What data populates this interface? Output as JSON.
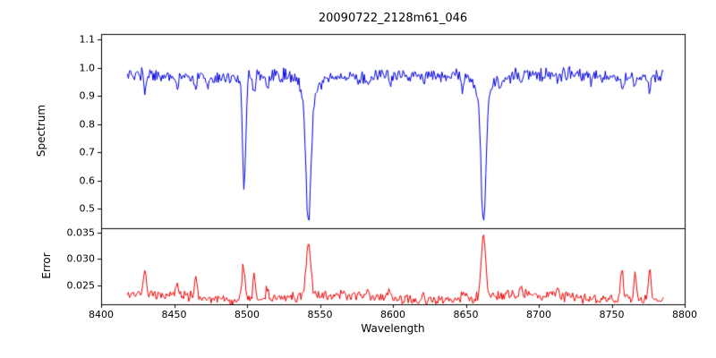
{
  "figure": {
    "title": "20090722_2128m61_046",
    "background": "#ffffff"
  },
  "chart_data": {
    "type": "line",
    "title": "20090722_2128m61_046",
    "xlabel": "Wavelength",
    "x_range": [
      8400,
      8800
    ],
    "x_ticks": [
      8400,
      8450,
      8500,
      8550,
      8600,
      8650,
      8700,
      8750,
      8800
    ],
    "x_tick_labels": [
      "8400",
      "8450",
      "8500",
      "8550",
      "8600",
      "8650",
      "8700",
      "8750",
      "8800"
    ],
    "x_start": 8418,
    "x_end": 8786,
    "x_step": 0.7,
    "seed": 20090722,
    "grid": false,
    "legend": "none",
    "subplots": [
      {
        "name": "spectrum",
        "ylabel": "Spectrum",
        "color": "#0000dd",
        "ylim": [
          0.43,
          1.12
        ],
        "y_ticks": [
          0.5,
          0.6,
          0.7,
          0.8,
          0.9,
          1.0,
          1.1
        ],
        "y_tick_labels": [
          "0.5",
          "0.6",
          "0.7",
          "0.8",
          "0.9",
          "1.0",
          "1.1"
        ],
        "continuum": 0.972,
        "continuum_wobble": {
          "amplitude": 0.006,
          "period": 95
        },
        "noise_amplitude": 0.03,
        "absorption_lines": [
          {
            "center": 8498.0,
            "depth": 0.4,
            "sigma": 1.1
          },
          {
            "center": 8542.1,
            "depth": 0.45,
            "sigma": 1.7
          },
          {
            "center": 8542.1,
            "depth": 0.08,
            "sigma": 5.0
          },
          {
            "center": 8662.1,
            "depth": 0.45,
            "sigma": 1.6
          },
          {
            "center": 8662.1,
            "depth": 0.07,
            "sigma": 5.0
          },
          {
            "center": 8430.0,
            "depth": 0.055,
            "sigma": 0.8
          },
          {
            "center": 8452.0,
            "depth": 0.05,
            "sigma": 0.8
          },
          {
            "center": 8465.0,
            "depth": 0.045,
            "sigma": 0.8
          },
          {
            "center": 8473.0,
            "depth": 0.035,
            "sigma": 0.7
          },
          {
            "center": 8505.0,
            "depth": 0.075,
            "sigma": 0.9
          },
          {
            "center": 8514.0,
            "depth": 0.04,
            "sigma": 0.8
          },
          {
            "center": 8523.0,
            "depth": 0.03,
            "sigma": 0.7
          },
          {
            "center": 8583.0,
            "depth": 0.035,
            "sigma": 0.8
          },
          {
            "center": 8598.0,
            "depth": 0.035,
            "sigma": 0.8
          },
          {
            "center": 8611.0,
            "depth": 0.03,
            "sigma": 0.7
          },
          {
            "center": 8621.0,
            "depth": 0.035,
            "sigma": 0.7
          },
          {
            "center": 8648.0,
            "depth": 0.04,
            "sigma": 0.8
          },
          {
            "center": 8674.0,
            "depth": 0.035,
            "sigma": 0.8
          },
          {
            "center": 8688.0,
            "depth": 0.045,
            "sigma": 0.8
          },
          {
            "center": 8713.0,
            "depth": 0.03,
            "sigma": 0.8
          },
          {
            "center": 8736.0,
            "depth": 0.03,
            "sigma": 0.7
          },
          {
            "center": 8757.0,
            "depth": 0.045,
            "sigma": 0.8
          },
          {
            "center": 8766.0,
            "depth": 0.04,
            "sigma": 0.8
          },
          {
            "center": 8776.0,
            "depth": 0.045,
            "sigma": 0.8
          }
        ]
      },
      {
        "name": "error",
        "ylabel": "Error",
        "color": "#ee0000",
        "ylim": [
          0.0215,
          0.0358
        ],
        "y_ticks": [
          0.025,
          0.03,
          0.035
        ],
        "y_tick_labels": [
          "0.025",
          "0.030",
          "0.035"
        ],
        "baseline": 0.0228,
        "baseline_wobble": {
          "amplitude": 0.0005,
          "period": 130
        },
        "noise_amplitude": 0.0012,
        "peaks": [
          {
            "center": 8430.0,
            "height": 0.005,
            "sigma": 0.9
          },
          {
            "center": 8452.0,
            "height": 0.0026,
            "sigma": 0.9
          },
          {
            "center": 8465.0,
            "height": 0.0038,
            "sigma": 0.9
          },
          {
            "center": 8497.5,
            "height": 0.0066,
            "sigma": 1.0
          },
          {
            "center": 8505.0,
            "height": 0.005,
            "sigma": 0.9
          },
          {
            "center": 8514.0,
            "height": 0.0022,
            "sigma": 0.8
          },
          {
            "center": 8542.1,
            "height": 0.01,
            "sigma": 1.6
          },
          {
            "center": 8583.0,
            "height": 0.0013,
            "sigma": 0.8
          },
          {
            "center": 8598.0,
            "height": 0.0013,
            "sigma": 0.8
          },
          {
            "center": 8621.0,
            "height": 0.0012,
            "sigma": 0.8
          },
          {
            "center": 8648.0,
            "height": 0.0014,
            "sigma": 0.8
          },
          {
            "center": 8662.1,
            "height": 0.012,
            "sigma": 1.5
          },
          {
            "center": 8688.0,
            "height": 0.0016,
            "sigma": 0.8
          },
          {
            "center": 8713.0,
            "height": 0.0012,
            "sigma": 0.8
          },
          {
            "center": 8757.0,
            "height": 0.0058,
            "sigma": 0.9
          },
          {
            "center": 8766.0,
            "height": 0.0048,
            "sigma": 0.9
          },
          {
            "center": 8776.0,
            "height": 0.006,
            "sigma": 0.9
          }
        ]
      }
    ]
  }
}
